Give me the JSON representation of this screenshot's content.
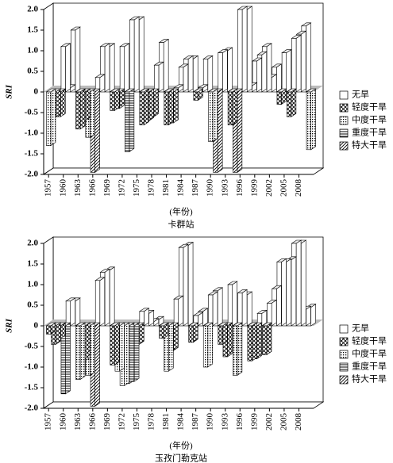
{
  "chart_data": [
    {
      "type": "bar3d",
      "title": "卡群站",
      "xlabel": "(年份)",
      "ylabel": "SRI",
      "xlim": [
        1956,
        2011
      ],
      "xticks": [
        1957,
        1960,
        1963,
        1966,
        1969,
        1972,
        1975,
        1978,
        1981,
        1984,
        1987,
        1990,
        1993,
        1996,
        1999,
        2002,
        2005,
        2008
      ],
      "ylim": [
        -2,
        2
      ],
      "yticks": [
        {
          "value": 2,
          "label": "2.0"
        },
        1.5,
        {
          "value": 1,
          "label": "1.0"
        },
        0.5,
        0,
        -0.5,
        {
          "value": -1,
          "label": "-1.0"
        },
        -1.5,
        {
          "value": -2,
          "label": "-2.0"
        }
      ],
      "series": [
        {
          "name": "无旱",
          "pattern": "none",
          "x": [
            1960,
            1961,
            1962,
            1967,
            1968,
            1969,
            1972,
            1974,
            1975,
            1979,
            1980,
            1983,
            1984,
            1985,
            1986,
            1988,
            1989,
            1992,
            1993,
            1996,
            1997,
            1998,
            1999,
            2000,
            2001,
            2002,
            2003,
            2005,
            2007,
            2008,
            2009
          ],
          "values": [
            1.1,
            0.1,
            1.5,
            0.35,
            1.1,
            1.1,
            1.1,
            1.75,
            1.75,
            0.65,
            1.2,
            0.1,
            0.6,
            0.8,
            0.8,
            0.1,
            0.8,
            0.95,
            1.0,
            2.0,
            2.0,
            0.15,
            0.75,
            0.9,
            1.1,
            0.35,
            0.6,
            0.95,
            1.3,
            1.4,
            1.6
          ]
        },
        {
          "name": "轻度干旱",
          "pattern": "cross",
          "x": [
            1958,
            1959,
            1963,
            1964,
            1970,
            1971,
            1976,
            1977,
            1978,
            1981,
            1982,
            1987,
            1994,
            2004,
            2006
          ],
          "values": [
            -0.6,
            -0.6,
            -0.9,
            -0.7,
            -0.45,
            -0.4,
            -0.8,
            -0.7,
            -0.6,
            -0.8,
            -0.75,
            -0.2,
            -0.8,
            -0.3,
            -0.6
          ]
        },
        {
          "name": "中度干旱",
          "pattern": "dots",
          "x": [
            1957,
            1965,
            1990,
            2010
          ],
          "values": [
            -1.3,
            -1.1,
            -1.2,
            -1.4
          ]
        },
        {
          "name": "重度干旱",
          "pattern": "hlines",
          "x": [
            1973
          ],
          "values": [
            -1.45
          ]
        },
        {
          "name": "特大干旱",
          "pattern": "diag",
          "x": [
            1966,
            1991,
            1995
          ],
          "values": [
            -1.95,
            -1.95,
            -1.95
          ]
        }
      ]
    },
    {
      "type": "bar3d",
      "title": "玉孜门勒克站",
      "xlabel": "(年份)",
      "ylabel": "SRI",
      "xlim": [
        1956,
        2011
      ],
      "xticks": [
        1957,
        1960,
        1963,
        1966,
        1969,
        1972,
        1975,
        1978,
        1981,
        1984,
        1987,
        1990,
        1993,
        1996,
        1999,
        2002,
        2005,
        2008
      ],
      "ylim": [
        -2,
        2
      ],
      "yticks": [
        {
          "value": 2,
          "label": "2.0"
        },
        1.5,
        {
          "value": 1,
          "label": "1.0"
        },
        0.5,
        0,
        -0.5,
        {
          "value": -1,
          "label": "-1.0"
        },
        -1.5,
        {
          "value": -2,
          "label": "-2.0"
        }
      ],
      "series": [
        {
          "name": "无旱",
          "pattern": "none",
          "x": [
            1961,
            1962,
            1967,
            1968,
            1969,
            1976,
            1977,
            1978,
            1979,
            1983,
            1984,
            1985,
            1987,
            1988,
            1990,
            1991,
            1994,
            1996,
            1997,
            2000,
            2002,
            2003,
            2004,
            2005,
            2006,
            2007,
            2008,
            2009,
            2010
          ],
          "values": [
            0.6,
            0.6,
            1.1,
            1.3,
            1.35,
            0.35,
            0.3,
            0.1,
            0.15,
            0.65,
            1.9,
            1.95,
            0.25,
            0.35,
            0.75,
            0.85,
            1.0,
            0.8,
            0.75,
            0.3,
            0.55,
            0.9,
            1.55,
            1.55,
            1.6,
            2.0,
            2.0,
            0.4,
            0.45
          ]
        },
        {
          "name": "轻度干旱",
          "pattern": "cross",
          "x": [
            1957,
            1958,
            1959,
            1964,
            1970,
            1975,
            1980,
            1982,
            1986,
            1992,
            1993,
            1998,
            1999,
            2001
          ],
          "values": [
            -0.2,
            -0.45,
            -0.3,
            -0.85,
            -0.95,
            -0.45,
            -0.3,
            -0.6,
            -0.4,
            -0.45,
            -0.75,
            -0.85,
            -0.8,
            -0.7
          ]
        },
        {
          "name": "中度干旱",
          "pattern": "dots",
          "x": [
            1963,
            1965,
            1971,
            1972,
            1981,
            1989,
            1995
          ],
          "values": [
            -1.3,
            -1.2,
            -1.1,
            -1.45,
            -1.1,
            -1.0,
            -1.2
          ]
        },
        {
          "name": "重度干旱",
          "pattern": "hlines",
          "x": [
            1960,
            1973,
            1974
          ],
          "values": [
            -1.65,
            -1.4,
            -1.35
          ]
        },
        {
          "name": "特大干旱",
          "pattern": "diag",
          "x": [
            1966
          ],
          "values": [
            -1.95
          ]
        }
      ]
    }
  ]
}
